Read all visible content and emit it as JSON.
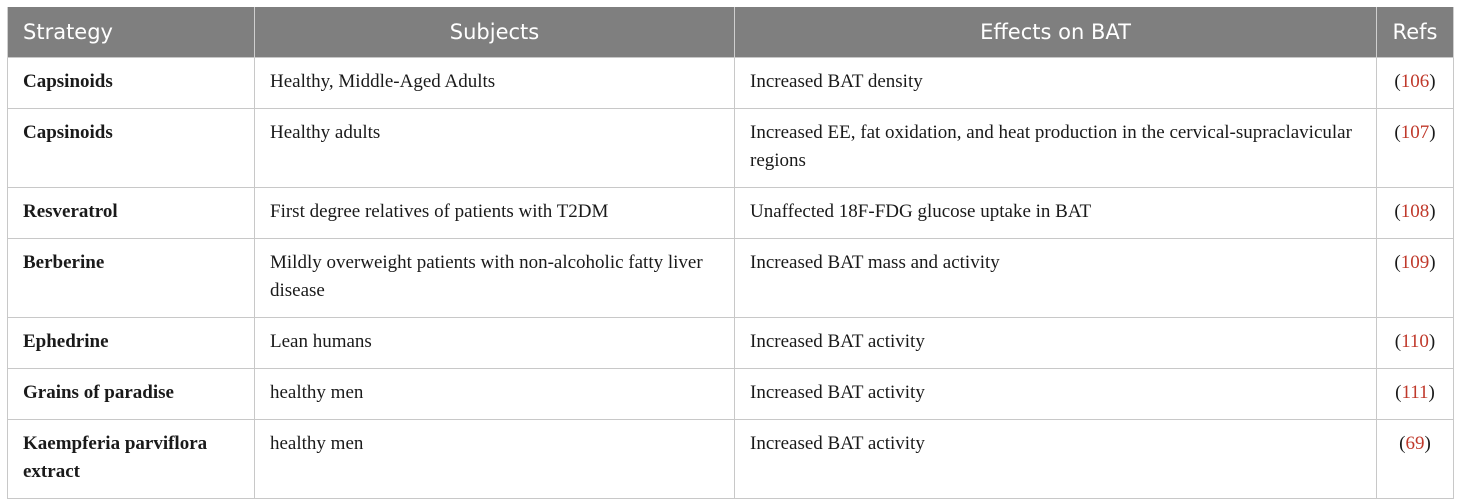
{
  "table": {
    "headers": [
      "Strategy",
      "Subjects",
      "Effects on BAT",
      "Refs"
    ],
    "rows": [
      {
        "strategy": "Capsinoids",
        "subjects": "Healthy, Middle-Aged Adults",
        "effects": "Increased BAT density",
        "ref": "106"
      },
      {
        "strategy": "Capsinoids",
        "subjects": "Healthy adults",
        "effects": "Increased EE, fat oxidation, and heat production in the cervical-supraclavicular regions",
        "ref": "107"
      },
      {
        "strategy": "Resveratrol",
        "subjects": "First degree relatives of patients with T2DM",
        "effects": "Unaffected 18F-FDG glucose uptake in BAT",
        "ref": "108"
      },
      {
        "strategy": "Berberine",
        "subjects": "Mildly overweight patients with non-alcoholic fatty liver disease",
        "effects": "Increased BAT mass and activity",
        "ref": "109"
      },
      {
        "strategy": "Ephedrine",
        "subjects": "Lean humans",
        "effects": "Increased BAT activity",
        "ref": "110"
      },
      {
        "strategy": "Grains of paradise",
        "subjects": "healthy men",
        "effects": "Increased BAT activity",
        "ref": "111"
      },
      {
        "strategy": "Kaempferia parviflora extract",
        "subjects": "healthy men",
        "effects": "Increased BAT activity",
        "ref": "69"
      }
    ]
  },
  "colors": {
    "header_bg": "#7f7f7f",
    "header_text": "#ffffff",
    "ref_link": "#c0392b",
    "border": "#c8c8c8"
  }
}
